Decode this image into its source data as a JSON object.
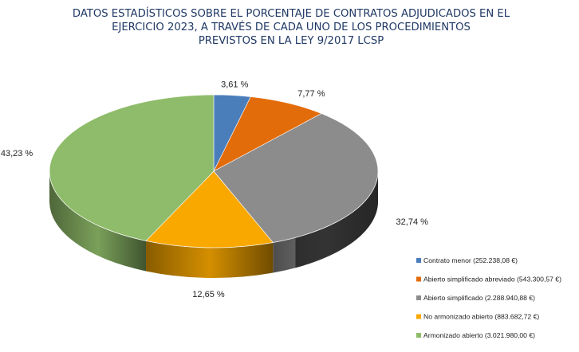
{
  "chart_data": {
    "type": "pie",
    "title_lines": [
      "DATOS ESTADÍSTICOS SOBRE EL PORCENTAJE DE CONTRATOS ADJUDICADOS EN EL",
      "EJERCICIO 2023, A TRAVÉS DE CADA UNO DE LOS PROCEDIMIENTOS",
      "PREVISTOS EN LA LEY 9/2017 LCSP"
    ],
    "slices": [
      {
        "legend": "Contrato menor (252.238,08 €)",
        "value": 252238.08,
        "percent": 3.61,
        "label": "3,61 %",
        "color": "#4a7ebb"
      },
      {
        "legend": "Abierto simplificado abreviado (543.300,57 €)",
        "value": 543300.57,
        "percent": 7.77,
        "label": "7,77 %",
        "color": "#e36c0a"
      },
      {
        "legend": "Abierto simplificado (2.288.940,88 €)",
        "value": 2288940.88,
        "percent": 32.74,
        "label": "32,74 %",
        "color": "#8c8c8c"
      },
      {
        "legend": "No armonizado abierto (883.682,72 €)",
        "value": 883682.72,
        "percent": 12.65,
        "label": "12,65 %",
        "color": "#f9a800"
      },
      {
        "legend": "Armonizado abierto (3.021.980,00 €)",
        "value": 3021980.0,
        "percent": 43.23,
        "label": "43,23 %",
        "color": "#8fbc6a"
      }
    ],
    "style": "3d-pie",
    "legend_position": "bottom-right"
  }
}
